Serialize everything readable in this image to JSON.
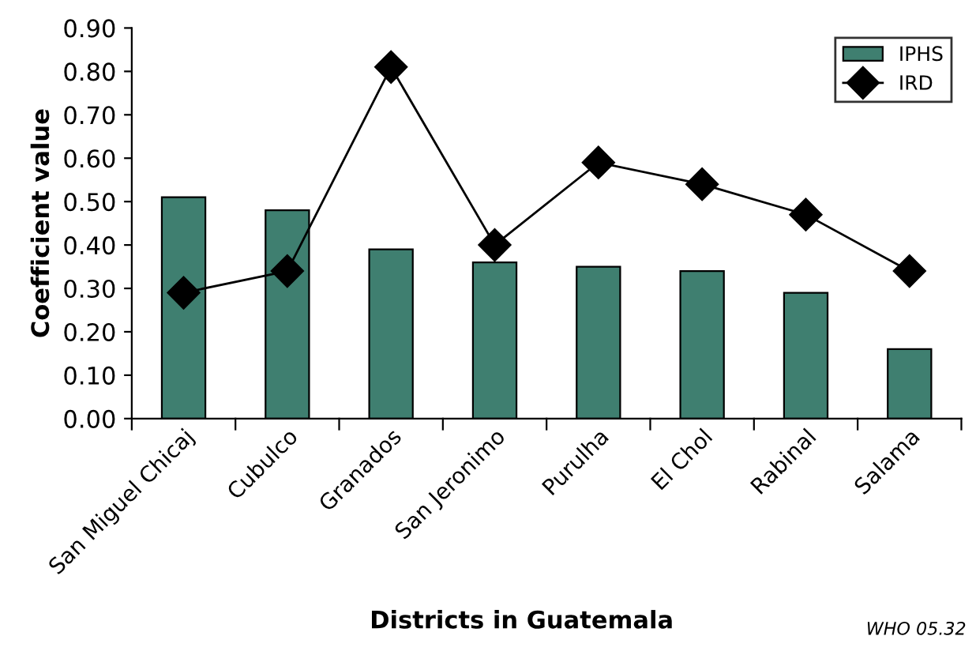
{
  "chart_data": {
    "type": "bar",
    "xlabel": "Districts in Guatemala",
    "ylabel": "Coefficient value",
    "categories": [
      "San Miguel Chicaj",
      "Cubulco",
      "Granados",
      "San Jeronimo",
      "Purulha",
      "El Chol",
      "Rabinal",
      "Salama"
    ],
    "series": [
      {
        "name": "IPHS",
        "color": "#3f7f70",
        "values": [
          0.51,
          0.48,
          0.39,
          0.36,
          0.35,
          0.34,
          0.29,
          0.16
        ]
      },
      {
        "name": "IRD",
        "type": "line",
        "color": "#000000",
        "marker": "diamond",
        "values": [
          0.29,
          0.34,
          0.81,
          0.4,
          0.59,
          0.54,
          0.47,
          0.34
        ]
      }
    ],
    "ylim": [
      0,
      0.9
    ],
    "yticks": [
      {
        "value": 0,
        "label": "0.00"
      },
      {
        "value": 0.1,
        "label": "0.10"
      },
      {
        "value": 0.2,
        "label": "0.20"
      },
      {
        "value": 0.3,
        "label": "0.30"
      },
      {
        "value": 0.4,
        "label": "0.40"
      },
      {
        "value": 0.5,
        "label": "0.50"
      },
      {
        "value": 0.6,
        "label": "0.60"
      },
      {
        "value": 0.7,
        "label": "0.70"
      },
      {
        "value": 0.8,
        "label": "0.80"
      },
      {
        "value": 0.9,
        "label": "0.90"
      }
    ],
    "grid": false,
    "legend": "top right",
    "annotations": [
      "WHO 05.32"
    ]
  }
}
